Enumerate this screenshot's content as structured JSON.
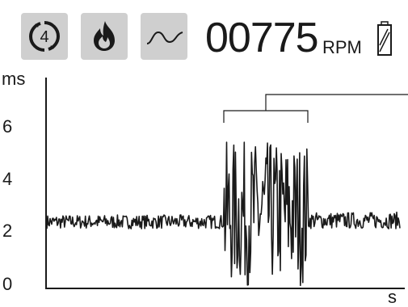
{
  "header": {
    "icons": [
      "cylinder-4-cycle-icon",
      "flame-icon",
      "waveform-icon"
    ],
    "rpm_value": "00775",
    "rpm_unit": "RPM",
    "battery_icon": "battery-icon"
  },
  "chart_data": {
    "type": "line",
    "title": "",
    "ylabel": "ms",
    "xlabel": "s",
    "y_ticks": [
      "0",
      "2",
      "4",
      "6"
    ],
    "ylim": [
      0,
      7.6
    ],
    "grid": false,
    "annotation": "bracket marking burst region",
    "series": [
      {
        "description_free": true,
        "segments": [
          {
            "x_range": [
              0,
              0.5
            ],
            "baseline": 2.4,
            "amplitude": 0.25
          },
          {
            "x_range": [
              0.5,
              0.74
            ],
            "baseline": 2.7,
            "amplitude": 2.6
          },
          {
            "x_range": [
              0.74,
              1.0
            ],
            "baseline": 2.45,
            "amplitude": 0.3
          }
        ]
      }
    ]
  },
  "colors": {
    "icon_tile": "#cfcfcf",
    "ink": "#1a1a1a"
  }
}
